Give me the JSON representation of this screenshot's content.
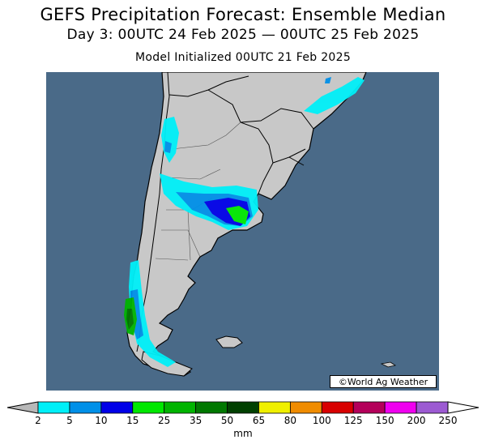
{
  "title": "GEFS Precipitation Forecast: Ensemble Median",
  "subtitle": "Day 3: 00UTC 24 Feb 2025 — 00UTC 25 Feb 2025",
  "init_line": "Model Initialized 00UTC 21 Feb 2025",
  "credit": "©World Ag Weather",
  "colors": {
    "ocean": "#4a6a88",
    "land": "#c8c8c8",
    "border": "#000000"
  },
  "legend": {
    "units": "mm",
    "ticks": [
      "2",
      "5",
      "10",
      "15",
      "25",
      "35",
      "50",
      "65",
      "80",
      "100",
      "125",
      "150",
      "200",
      "250"
    ],
    "colors": [
      "#00f0f8",
      "#0090e8",
      "#0000e8",
      "#00e800",
      "#00b400",
      "#007800",
      "#004000",
      "#f0f000",
      "#f08c00",
      "#d80000",
      "#b4005a",
      "#f000f0",
      "#9c5ad2"
    ],
    "under_color": "#b8b8b8",
    "over_color": "#ffffff"
  }
}
